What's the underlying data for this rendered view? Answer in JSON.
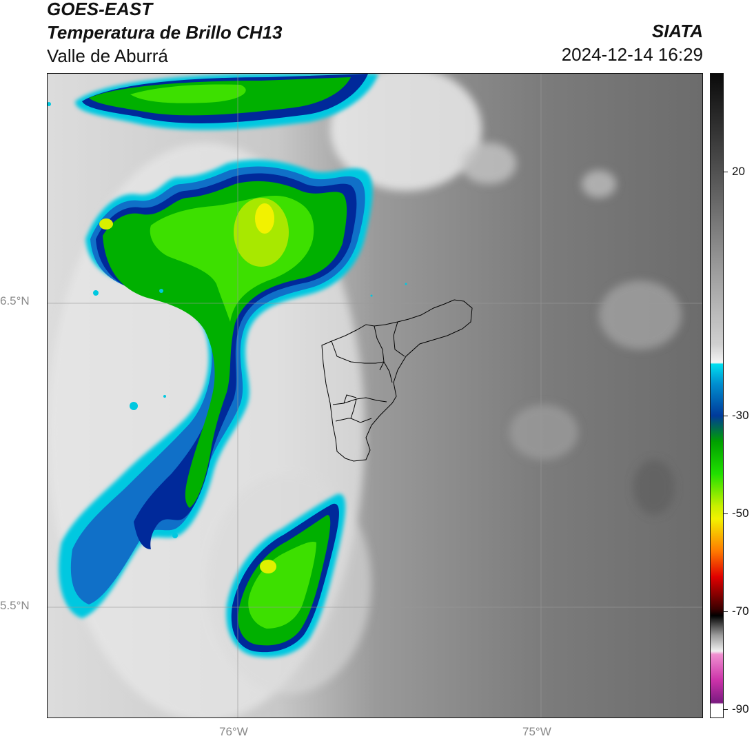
{
  "header": {
    "title_line1": "GOES-EAST",
    "title_line2": "Temperatura de Brillo CH13",
    "subtitle": "Valle de Aburrá",
    "organization": "SIATA",
    "datetime": "2024-12-14 16:29"
  },
  "map": {
    "lat_labels": [
      "6.5°N",
      "5.5°N"
    ],
    "lon_labels": [
      "76°W",
      "75°W"
    ],
    "background_grey": "#8c8c8c"
  },
  "colorbar": {
    "tick_labels": [
      "20",
      "-30",
      "-50",
      "-70",
      "-90"
    ],
    "colors": {
      "cloud_green": "#22d300",
      "cloud_yellow": "#f2f200",
      "cloud_blue": "#00299a",
      "cloud_cyan": "#00c8e0",
      "magenta": "#cc33aa"
    }
  }
}
